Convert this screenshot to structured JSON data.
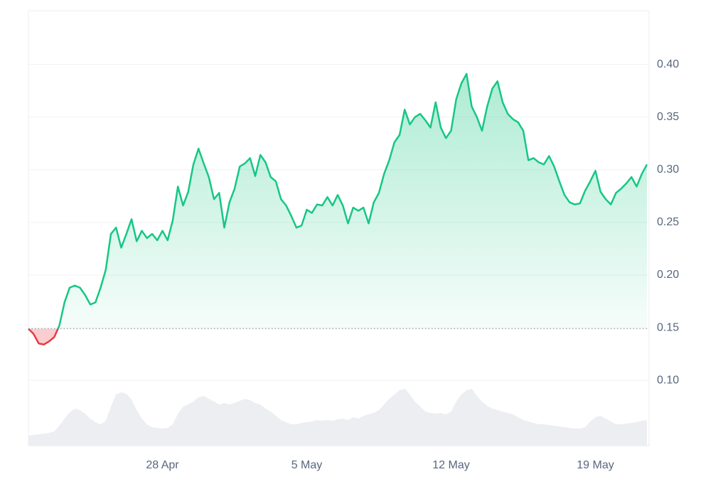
{
  "chart_data": {
    "type": "line",
    "xlim": [
      0,
      120
    ],
    "xticks": [
      {
        "value": 26,
        "label": "28 Apr"
      },
      {
        "value": 54,
        "label": "5 May"
      },
      {
        "value": 82,
        "label": "12 May"
      },
      {
        "value": 110,
        "label": "19 May"
      }
    ],
    "ylim": [
      0.038,
      0.451
    ],
    "yticks": [
      {
        "value": 0.1,
        "label": "0.10"
      },
      0.15,
      {
        "value": 0.2,
        "label": "0.20"
      },
      0.25,
      {
        "value": 0.3,
        "label": "0.30"
      },
      0.35,
      {
        "value": 0.4,
        "label": "0.40"
      }
    ],
    "y2lim": [
      0,
      100
    ],
    "grid": true,
    "baseline": 0.149,
    "series": [
      {
        "color": "#16c784",
        "down_color": "#ea3943",
        "values": [
          0.149,
          0.144,
          0.135,
          0.134,
          0.137,
          0.141,
          0.152,
          0.174,
          0.188,
          0.19,
          0.188,
          0.181,
          0.172,
          0.174,
          0.188,
          0.205,
          0.239,
          0.245,
          0.226,
          0.239,
          0.253,
          0.232,
          0.242,
          0.235,
          0.239,
          0.233,
          0.242,
          0.233,
          0.252,
          0.284,
          0.266,
          0.279,
          0.305,
          0.32,
          0.306,
          0.293,
          0.272,
          0.278,
          0.245,
          0.269,
          0.282,
          0.303,
          0.306,
          0.311,
          0.294,
          0.314,
          0.307,
          0.293,
          0.289,
          0.272,
          0.266,
          0.256,
          0.245,
          0.247,
          0.262,
          0.259,
          0.267,
          0.266,
          0.274,
          0.266,
          0.276,
          0.266,
          0.249,
          0.264,
          0.261,
          0.264,
          0.249,
          0.269,
          0.278,
          0.296,
          0.309,
          0.326,
          0.333,
          0.357,
          0.343,
          0.35,
          0.353,
          0.347,
          0.34,
          0.364,
          0.34,
          0.33,
          0.337,
          0.367,
          0.382,
          0.391,
          0.36,
          0.35,
          0.337,
          0.36,
          0.377,
          0.384,
          0.364,
          0.353,
          0.348,
          0.345,
          0.337,
          0.309,
          0.311,
          0.307,
          0.305,
          0.313,
          0.303,
          0.289,
          0.276,
          0.269,
          0.267,
          0.268,
          0.28,
          0.289,
          0.299,
          0.279,
          0.272,
          0.267,
          0.278,
          0.282,
          0.287,
          0.293,
          0.284,
          0.296,
          0.305
        ]
      },
      {
        "color": "#eceef1",
        "axis": "y2",
        "values": [
          14,
          15,
          16,
          17,
          18,
          20,
          28,
          38,
          47,
          52,
          50,
          45,
          38,
          33,
          30,
          35,
          55,
          72,
          75,
          73,
          65,
          50,
          38,
          30,
          26,
          25,
          24,
          25,
          30,
          45,
          55,
          58,
          62,
          68,
          70,
          66,
          62,
          58,
          60,
          58,
          60,
          63,
          66,
          64,
          60,
          58,
          52,
          48,
          42,
          36,
          33,
          30,
          30,
          32,
          33,
          34,
          36,
          35,
          36,
          35,
          37,
          38,
          36,
          40,
          38,
          42,
          44,
          46,
          50,
          58,
          66,
          72,
          78,
          80,
          72,
          62,
          55,
          48,
          46,
          45,
          46,
          44,
          48,
          62,
          72,
          78,
          80,
          70,
          62,
          56,
          52,
          50,
          48,
          46,
          44,
          40,
          36,
          34,
          32,
          30,
          30,
          29,
          28,
          27,
          26,
          25,
          24,
          24,
          26,
          34,
          40,
          42,
          38,
          34,
          30,
          30,
          31,
          32,
          33,
          35,
          36
        ]
      }
    ]
  }
}
